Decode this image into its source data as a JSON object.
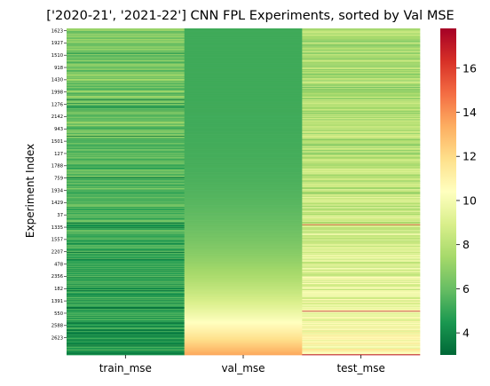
{
  "chart_data": {
    "type": "heatmap",
    "title": "['2020-21', '2021-22'] CNN FPL Experiments, sorted by Val MSE",
    "xlabel": "",
    "ylabel": "Experiment Index",
    "columns": [
      "train_mse",
      "val_mse",
      "test_mse"
    ],
    "row_tick_labels": [
      "1623",
      "1927",
      "1510",
      "918",
      "1430",
      "1998",
      "1276",
      "2142",
      "943",
      "1501",
      "127",
      "1788",
      "759",
      "1934",
      "1429",
      "37",
      "1335",
      "1557",
      "2207",
      "478",
      "2356",
      "182",
      "1391",
      "550",
      "2588",
      "2623"
    ],
    "row_count": 520,
    "sorted_by": "val_mse",
    "colormap": "RdYlGn_r",
    "value_range": [
      3.0,
      17.8
    ],
    "colorbar_ticks": [
      4,
      6,
      8,
      10,
      12,
      14,
      16
    ],
    "approx_column_summary": {
      "train_mse": {
        "typical": 5.8,
        "min": 3.0,
        "max": 9.5
      },
      "val_mse": {
        "start": 5.2,
        "end": 13.5
      },
      "test_mse": {
        "typical": 7.5,
        "min": 4.8,
        "max": 17.5
      }
    }
  },
  "colors": {
    "low": "#006837",
    "mid": "#ffffbf",
    "high": "#a50026"
  }
}
